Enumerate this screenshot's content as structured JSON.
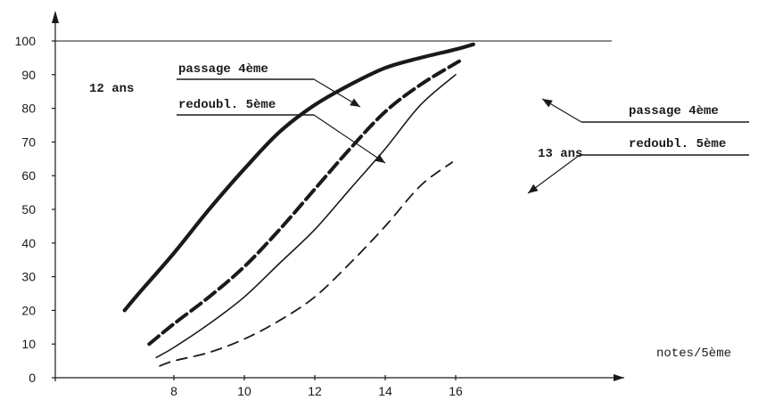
{
  "chart_data": {
    "type": "line",
    "xlabel": "notes/5ème",
    "ylabel": "",
    "xlim": [
      6,
      17
    ],
    "ylim": [
      0,
      100
    ],
    "x_ticks": [
      8,
      10,
      12,
      14,
      16
    ],
    "y_ticks": [
      0,
      10,
      20,
      30,
      40,
      50,
      60,
      70,
      80,
      90,
      100
    ],
    "reference_line": 100,
    "grid": false,
    "groups": [
      {
        "label": "12 ans"
      },
      {
        "label": "13 ans"
      }
    ],
    "series": [
      {
        "name": "passage 4ème",
        "group": "12 ans",
        "style": "thick-solid",
        "x": [
          6.6,
          7,
          8,
          9,
          10,
          11,
          12,
          13,
          14,
          15,
          16,
          16.5
        ],
        "y": [
          20,
          25,
          37,
          50,
          62,
          73,
          81,
          87,
          92,
          95,
          97.5,
          99
        ]
      },
      {
        "name": "redoubl. 5ème",
        "group": "12 ans",
        "style": "thick-dashed",
        "x": [
          7.3,
          8,
          9,
          10,
          11,
          12,
          13,
          14,
          15,
          16.1
        ],
        "y": [
          10,
          16,
          24,
          33,
          44,
          56,
          68,
          79,
          87,
          94
        ]
      },
      {
        "name": "passage 4ème",
        "group": "13 ans",
        "style": "thin-solid",
        "x": [
          7.5,
          8,
          9,
          10,
          11,
          12,
          13,
          14,
          15,
          16
        ],
        "y": [
          6,
          9,
          16,
          24,
          34,
          44,
          56,
          68,
          81,
          90
        ]
      },
      {
        "name": "redoubl. 5ème",
        "group": "13 ans",
        "style": "thin-dashed",
        "x": [
          7.6,
          8,
          9,
          10,
          11,
          12,
          13,
          14,
          15,
          15.9
        ],
        "y": [
          3.5,
          5,
          7.5,
          11.5,
          17,
          24,
          34,
          45,
          57,
          64
        ]
      }
    ]
  }
}
